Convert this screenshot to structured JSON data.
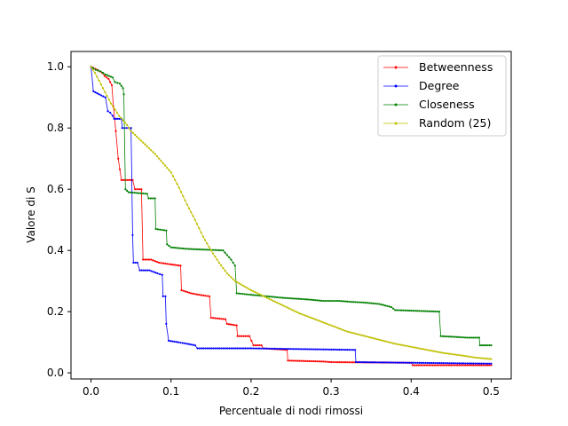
{
  "chart_data": {
    "type": "line",
    "xlabel": "Percentuale di nodi rimossi",
    "ylabel": "Valore di S",
    "xlim": [
      -0.025,
      0.525
    ],
    "ylim": [
      -0.02,
      1.05
    ],
    "x_ticks": [
      0.0,
      0.1,
      0.2,
      0.3,
      0.4,
      0.5
    ],
    "x_tick_labels": [
      "0.0",
      "0.1",
      "0.2",
      "0.3",
      "0.4",
      "0.5"
    ],
    "y_ticks": [
      0.0,
      0.2,
      0.4,
      0.6,
      0.8,
      1.0
    ],
    "y_tick_labels": [
      "0.0",
      "0.2",
      "0.4",
      "0.6",
      "0.8",
      "1.0"
    ],
    "grid": false,
    "legend_position": "top-right",
    "series": [
      {
        "name": "Betweenness",
        "color": "#ff0000",
        "points": [
          [
            0.0,
            1.0
          ],
          [
            0.008,
            0.99
          ],
          [
            0.014,
            0.98
          ],
          [
            0.017,
            0.97
          ],
          [
            0.022,
            0.96
          ],
          [
            0.026,
            0.94
          ],
          [
            0.028,
            0.87
          ],
          [
            0.031,
            0.79
          ],
          [
            0.034,
            0.7
          ],
          [
            0.038,
            0.63
          ],
          [
            0.052,
            0.63
          ],
          [
            0.055,
            0.6
          ],
          [
            0.063,
            0.6
          ],
          [
            0.065,
            0.37
          ],
          [
            0.075,
            0.37
          ],
          [
            0.085,
            0.36
          ],
          [
            0.098,
            0.355
          ],
          [
            0.112,
            0.35
          ],
          [
            0.113,
            0.27
          ],
          [
            0.125,
            0.26
          ],
          [
            0.135,
            0.255
          ],
          [
            0.148,
            0.25
          ],
          [
            0.15,
            0.18
          ],
          [
            0.168,
            0.175
          ],
          [
            0.17,
            0.16
          ],
          [
            0.182,
            0.155
          ],
          [
            0.183,
            0.12
          ],
          [
            0.198,
            0.12
          ],
          [
            0.203,
            0.09
          ],
          [
            0.213,
            0.09
          ],
          [
            0.215,
            0.08
          ],
          [
            0.245,
            0.075
          ],
          [
            0.246,
            0.04
          ],
          [
            0.29,
            0.037
          ],
          [
            0.3,
            0.035
          ],
          [
            0.4,
            0.033
          ],
          [
            0.402,
            0.025
          ],
          [
            0.5,
            0.025
          ]
        ]
      },
      {
        "name": "Degree",
        "color": "#0000ff",
        "points": [
          [
            0.0,
            1.0
          ],
          [
            0.003,
            0.92
          ],
          [
            0.01,
            0.91
          ],
          [
            0.018,
            0.9
          ],
          [
            0.021,
            0.855
          ],
          [
            0.024,
            0.85
          ],
          [
            0.027,
            0.84
          ],
          [
            0.029,
            0.83
          ],
          [
            0.038,
            0.83
          ],
          [
            0.039,
            0.8
          ],
          [
            0.05,
            0.8
          ],
          [
            0.052,
            0.45
          ],
          [
            0.053,
            0.36
          ],
          [
            0.058,
            0.36
          ],
          [
            0.061,
            0.335
          ],
          [
            0.073,
            0.335
          ],
          [
            0.083,
            0.325
          ],
          [
            0.089,
            0.32
          ],
          [
            0.09,
            0.25
          ],
          [
            0.093,
            0.25
          ],
          [
            0.094,
            0.16
          ],
          [
            0.097,
            0.105
          ],
          [
            0.109,
            0.1
          ],
          [
            0.12,
            0.095
          ],
          [
            0.13,
            0.09
          ],
          [
            0.133,
            0.08
          ],
          [
            0.2,
            0.08
          ],
          [
            0.33,
            0.075
          ],
          [
            0.331,
            0.035
          ],
          [
            0.5,
            0.03
          ]
        ]
      },
      {
        "name": "Closeness",
        "color": "#008000",
        "points": [
          [
            0.0,
            1.0
          ],
          [
            0.006,
            0.99
          ],
          [
            0.012,
            0.985
          ],
          [
            0.018,
            0.975
          ],
          [
            0.027,
            0.965
          ],
          [
            0.03,
            0.95
          ],
          [
            0.036,
            0.945
          ],
          [
            0.04,
            0.93
          ],
          [
            0.041,
            0.91
          ],
          [
            0.043,
            0.6
          ],
          [
            0.047,
            0.59
          ],
          [
            0.07,
            0.585
          ],
          [
            0.072,
            0.57
          ],
          [
            0.08,
            0.57
          ],
          [
            0.081,
            0.47
          ],
          [
            0.094,
            0.465
          ],
          [
            0.095,
            0.42
          ],
          [
            0.1,
            0.41
          ],
          [
            0.12,
            0.405
          ],
          [
            0.165,
            0.4
          ],
          [
            0.175,
            0.37
          ],
          [
            0.18,
            0.35
          ],
          [
            0.182,
            0.26
          ],
          [
            0.2,
            0.255
          ],
          [
            0.22,
            0.25
          ],
          [
            0.24,
            0.245
          ],
          [
            0.27,
            0.24
          ],
          [
            0.29,
            0.235
          ],
          [
            0.31,
            0.235
          ],
          [
            0.325,
            0.232
          ],
          [
            0.34,
            0.23
          ],
          [
            0.36,
            0.225
          ],
          [
            0.375,
            0.215
          ],
          [
            0.38,
            0.205
          ],
          [
            0.435,
            0.2
          ],
          [
            0.437,
            0.12
          ],
          [
            0.47,
            0.115
          ],
          [
            0.485,
            0.115
          ],
          [
            0.486,
            0.09
          ],
          [
            0.5,
            0.09
          ]
        ]
      },
      {
        "name": "Random (25)",
        "color": "#bfbf00",
        "points": [
          [
            0.0,
            1.0
          ],
          [
            0.005,
            0.98
          ],
          [
            0.01,
            0.955
          ],
          [
            0.015,
            0.93
          ],
          [
            0.02,
            0.905
          ],
          [
            0.025,
            0.88
          ],
          [
            0.03,
            0.86
          ],
          [
            0.035,
            0.84
          ],
          [
            0.04,
            0.825
          ],
          [
            0.045,
            0.81
          ],
          [
            0.05,
            0.79
          ],
          [
            0.06,
            0.765
          ],
          [
            0.07,
            0.74
          ],
          [
            0.08,
            0.715
          ],
          [
            0.09,
            0.685
          ],
          [
            0.1,
            0.655
          ],
          [
            0.11,
            0.605
          ],
          [
            0.12,
            0.55
          ],
          [
            0.13,
            0.5
          ],
          [
            0.14,
            0.445
          ],
          [
            0.15,
            0.4
          ],
          [
            0.16,
            0.36
          ],
          [
            0.17,
            0.325
          ],
          [
            0.18,
            0.3
          ],
          [
            0.2,
            0.27
          ],
          [
            0.22,
            0.245
          ],
          [
            0.24,
            0.22
          ],
          [
            0.26,
            0.195
          ],
          [
            0.28,
            0.175
          ],
          [
            0.3,
            0.155
          ],
          [
            0.32,
            0.135
          ],
          [
            0.35,
            0.115
          ],
          [
            0.38,
            0.095
          ],
          [
            0.4,
            0.085
          ],
          [
            0.42,
            0.075
          ],
          [
            0.44,
            0.065
          ],
          [
            0.46,
            0.058
          ],
          [
            0.48,
            0.05
          ],
          [
            0.5,
            0.045
          ]
        ]
      }
    ]
  }
}
